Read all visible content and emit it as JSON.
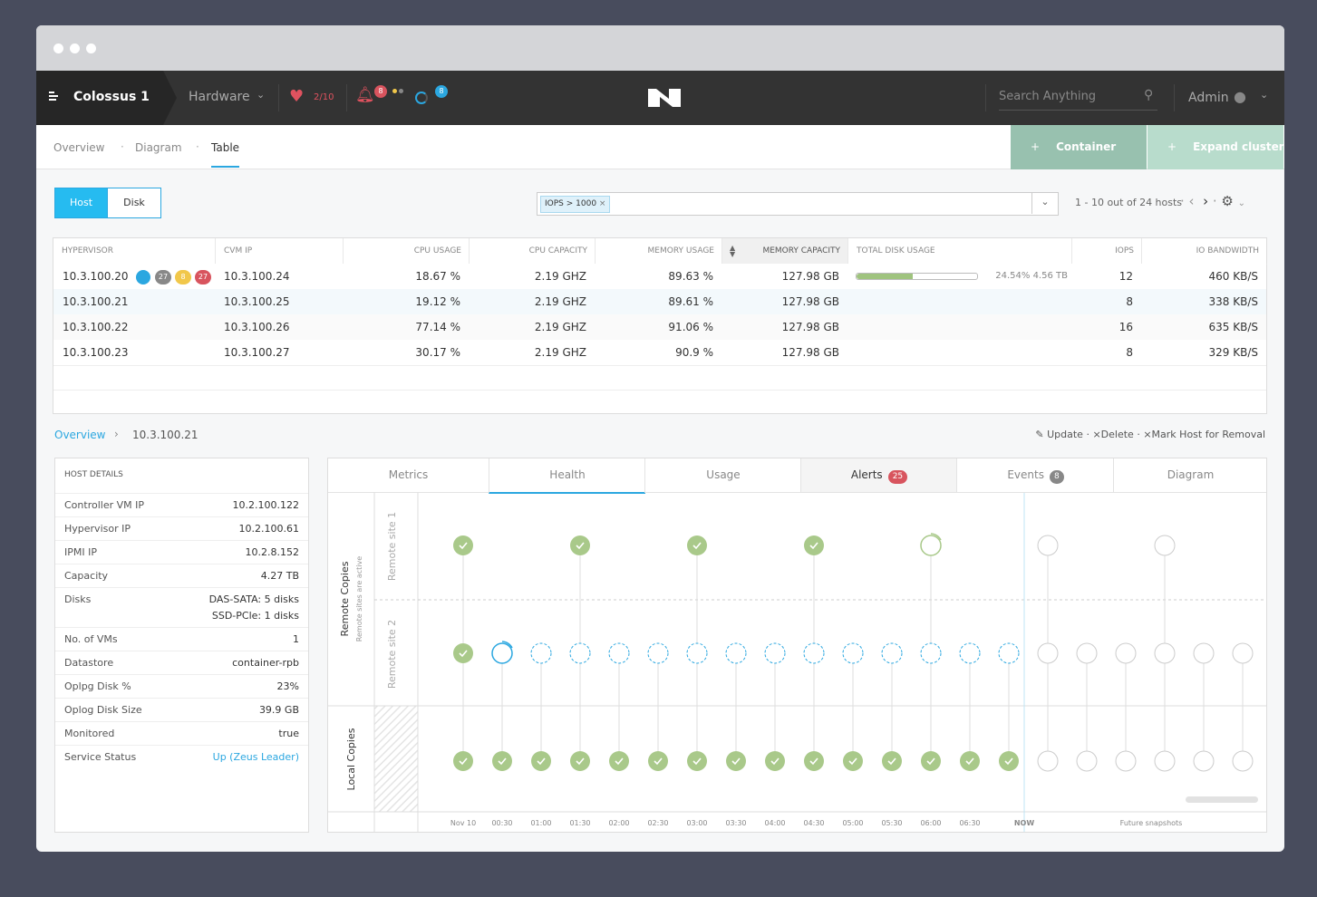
{
  "nav": {
    "cluster": "Colossus 1",
    "menu": "Hardware",
    "health": "2/10",
    "alerts": "8",
    "tasks": "8",
    "search": "Search Anything",
    "user": "Admin"
  },
  "tabs": {
    "items": [
      "Overview",
      "Diagram",
      "Table"
    ],
    "active": 2
  },
  "actions": [
    "Container",
    "Expand cluster"
  ],
  "toggle": [
    "Host",
    "Disk"
  ],
  "filter": "IOPS > 1000",
  "pagination": "1 - 10 out of 24 hosts",
  "table": {
    "columns": [
      "HYPERVISOR",
      "CVM IP",
      "CPU USAGE",
      "CPU CAPACITY",
      "MEMORY USAGE",
      "MEMORY CAPACITY",
      "TOTAL DISK USAGE",
      "IOPS",
      "IO BANDWIDTH"
    ],
    "badges": [
      "27",
      "8",
      "27"
    ],
    "rows": [
      [
        "10.3.100.20",
        "10.3.100.24",
        "18.67 %",
        "2.19 GHZ",
        "89.63 %",
        "127.98 GB",
        "24.54% 4.56 TB",
        "12",
        "460 KB/S"
      ],
      [
        "10.3.100.21",
        "10.3.100.25",
        "19.12 %",
        "2.19 GHZ",
        "89.61 %",
        "127.98 GB",
        null,
        "8",
        "338 KB/S"
      ],
      [
        "10.3.100.22",
        "10.3.100.26",
        "77.14 %",
        "2.19 GHZ",
        "91.06 %",
        "127.98 GB",
        null,
        "16",
        "635 KB/S"
      ],
      [
        "10.3.100.23",
        "10.3.100.27",
        "30.17 %",
        "2.19 GHZ",
        "90.9 %",
        "127.98 GB",
        null,
        "8",
        "329 KB/S"
      ]
    ]
  },
  "breadcrumb": [
    "Overview",
    "10.3.100.21"
  ],
  "detail_actions": [
    "Update",
    "Delete",
    "Mark Host for Removal"
  ],
  "host_details": {
    "title": "HOST DETAILS",
    "rows": [
      [
        "Controller VM IP",
        "10.2.100.122"
      ],
      [
        "Hypervisor IP",
        "10.2.100.61"
      ],
      [
        "IPMI IP",
        "10.2.8.152"
      ],
      [
        "Capacity",
        "4.27 TB"
      ],
      [
        "Disks",
        "DAS-SATA: 5 disks",
        "SSD-PCle: 1 disks"
      ],
      [
        "No. of VMs",
        "1"
      ],
      [
        "Datastore",
        "container-rpb"
      ],
      [
        "Oplpg Disk %",
        "23%"
      ],
      [
        "Oplog Disk Size",
        "39.9 GB"
      ],
      [
        "Monitored",
        "true"
      ],
      [
        "Service Status",
        "Up (Zeus Leader)"
      ]
    ]
  },
  "panel_tabs": {
    "items": [
      {
        "label": "Metrics"
      },
      {
        "label": "Health"
      },
      {
        "label": "Usage"
      },
      {
        "label": "Alerts",
        "count": "25"
      },
      {
        "label": "Events",
        "count": "8"
      },
      {
        "label": "Diagram"
      }
    ],
    "active": 1
  },
  "timeline": {
    "remote_title": "Remote Copies",
    "remote_subtitle": "Remote sites are active",
    "site1": "Remote site 1",
    "site2": "Remote site 2",
    "local_title": "Local Copies",
    "time_labels": [
      "Nov 10",
      "00:30",
      "01:00",
      "01:30",
      "02:00",
      "02:30",
      "03:00",
      "03:30",
      "04:00",
      "04:30",
      "05:00",
      "05:30",
      "06:00",
      "06:30"
    ],
    "now_label": "NOW",
    "future_label": "Future snapshots"
  }
}
